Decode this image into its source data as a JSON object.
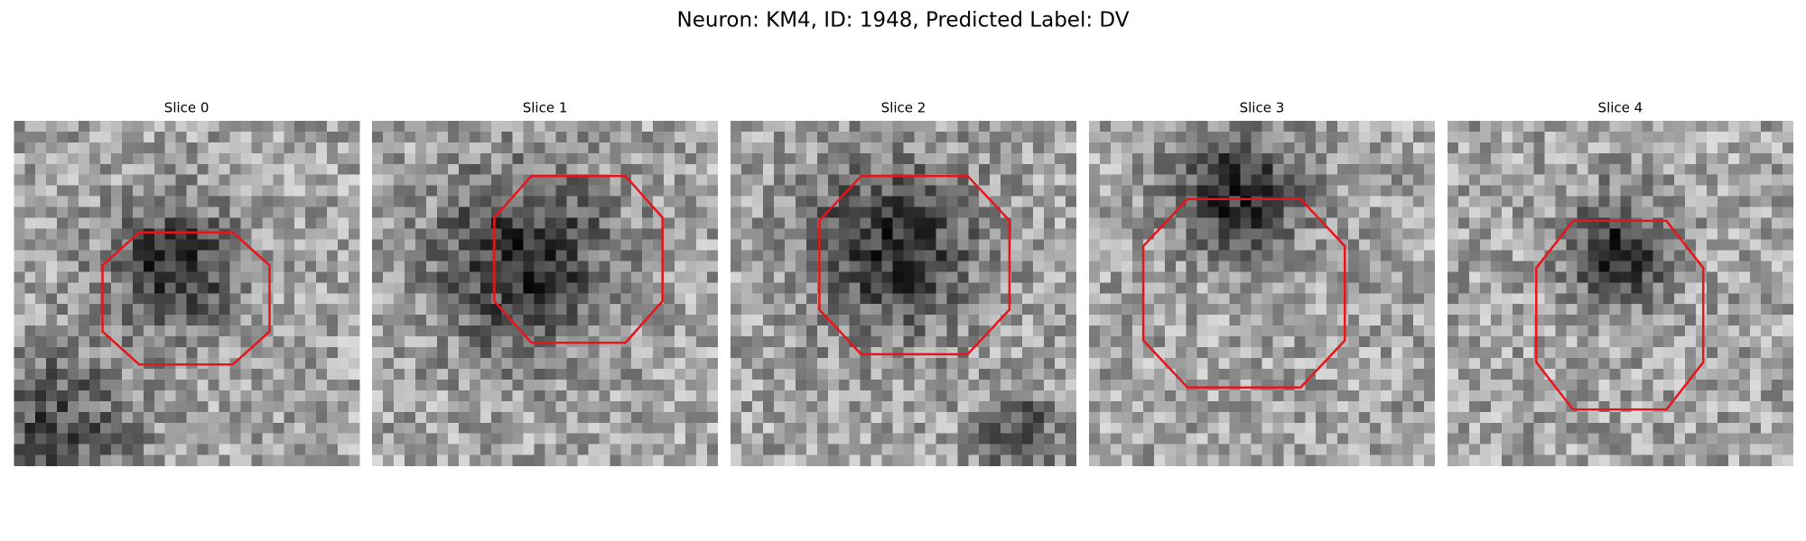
{
  "title": "Neuron: KM4, ID: 1948, Predicted Label: DV",
  "panels": [
    {
      "title": "Slice 0"
    },
    {
      "title": "Slice 1"
    },
    {
      "title": "Slice 2"
    },
    {
      "title": "Slice 3"
    },
    {
      "title": "Slice 4"
    }
  ]
}
